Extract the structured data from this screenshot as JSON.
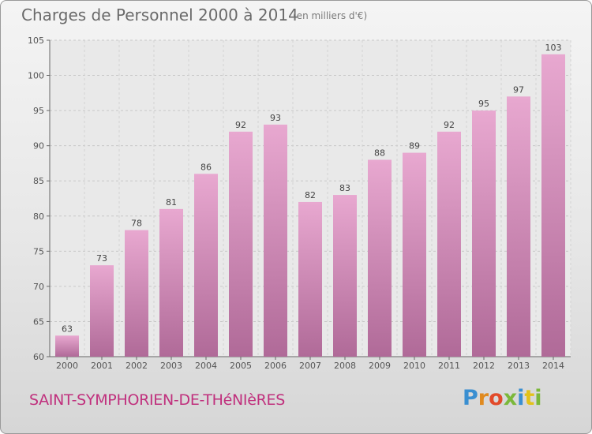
{
  "header": {
    "title": "Charges de Personnel 2000 à 2014",
    "subtitle": "(en milliers d'€)"
  },
  "footer": {
    "commune": "SAINT-SYMPHORIEN-DE-THéNIèRES",
    "logo_text": "Proxiti"
  },
  "colors": {
    "bar_top": "#e8a8d0",
    "bar_bottom": "#b06a98",
    "title": "#6a6a6a",
    "commune": "#c0307d",
    "logo": [
      "#3a8fd1",
      "#e08a1f",
      "#e24a2a",
      "#7bb83a",
      "#3a8fd1",
      "#e2c21a",
      "#7bb83a"
    ]
  },
  "chart_data": {
    "type": "bar",
    "title": "Charges de Personnel 2000 à 2014",
    "subtitle": "(en milliers d'€)",
    "categories": [
      "2000",
      "2001",
      "2002",
      "2003",
      "2004",
      "2005",
      "2006",
      "2007",
      "2008",
      "2009",
      "2010",
      "2011",
      "2012",
      "2013",
      "2014"
    ],
    "values": [
      63,
      73,
      78,
      81,
      86,
      92,
      93,
      82,
      83,
      88,
      89,
      92,
      95,
      97,
      103
    ],
    "ylim": [
      60,
      105
    ],
    "yticks": [
      60,
      65,
      70,
      75,
      80,
      85,
      90,
      95,
      100,
      105
    ],
    "grid": true,
    "xlabel": "",
    "ylabel": ""
  }
}
